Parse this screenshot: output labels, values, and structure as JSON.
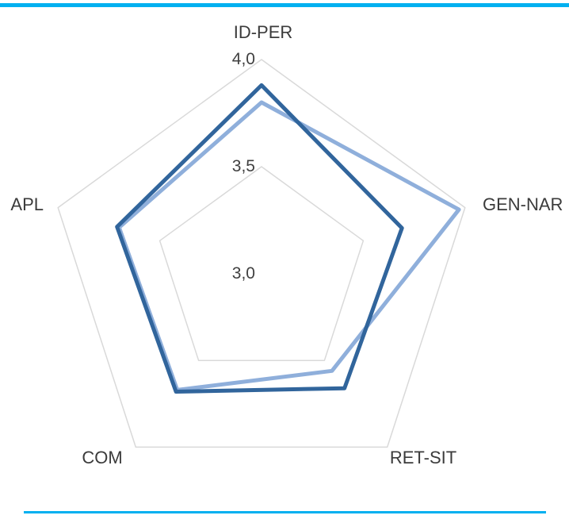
{
  "page": {
    "background": "#ffffff",
    "accent_rule_color": "#00B0F0"
  },
  "chart_data": {
    "type": "radar",
    "categories": [
      "ID-PER",
      "GEN-NAR",
      "RET-SIT",
      "COM",
      "APL"
    ],
    "series": [
      {
        "id": "light-blue",
        "color": "#8FAFDB",
        "values": [
          3.8,
          3.97,
          3.56,
          3.67,
          3.7
        ]
      },
      {
        "id": "dark-blue",
        "color": "#31659C",
        "values": [
          3.88,
          3.69,
          3.66,
          3.68,
          3.71
        ]
      }
    ],
    "ticks": [
      {
        "label": "4,0",
        "value": 4.0
      },
      {
        "label": "3,5",
        "value": 3.5
      },
      {
        "label": "3,0",
        "value": 3.0
      }
    ],
    "scale": {
      "min": 3.0,
      "max": 4.0
    },
    "grid_color": "#D9D9D9",
    "grid": "on",
    "legend": "none",
    "title": ""
  }
}
